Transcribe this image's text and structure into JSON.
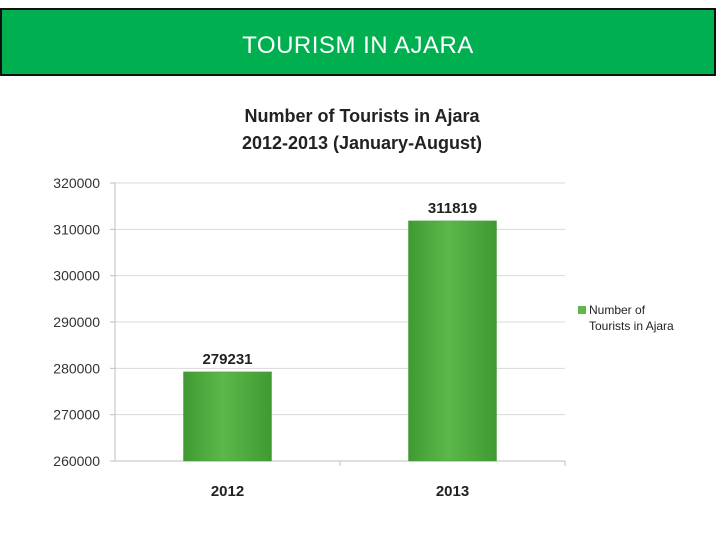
{
  "header": {
    "title": "TOURISM IN AJARA"
  },
  "colors": {
    "banner": "#00b050",
    "bar": "#5cb84a",
    "bar_dark": "#3f9a32",
    "grid": "#d9d9d9"
  },
  "chart_data": {
    "type": "bar",
    "title_lines": [
      "Number of Tourists in Ajara",
      "2012-2013 (January-August)"
    ],
    "categories": [
      "2012",
      "2013"
    ],
    "series": [
      {
        "name": "Number of Tourists in Ajara",
        "values": [
          279231,
          311819
        ]
      }
    ],
    "data_labels": [
      "279231",
      "311819"
    ],
    "ylim": [
      260000,
      320000
    ],
    "yticks": [
      260000,
      270000,
      280000,
      290000,
      300000,
      310000,
      320000
    ],
    "xlabel": "",
    "ylabel": "",
    "grid": true,
    "legend": {
      "position": "right",
      "entries": [
        "Number of",
        "Tourists in Ajara"
      ]
    }
  }
}
